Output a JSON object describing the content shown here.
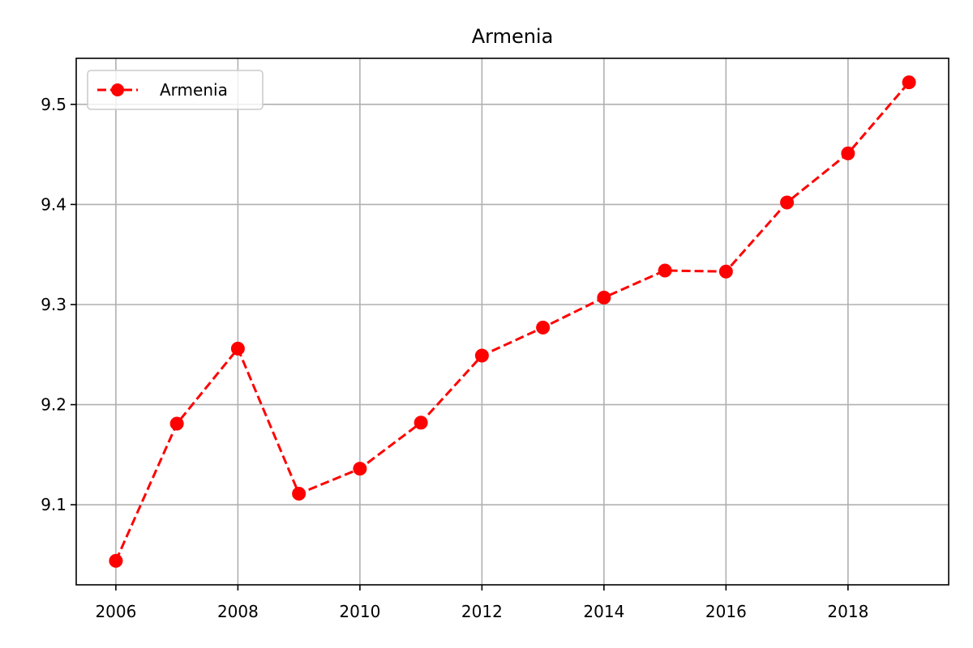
{
  "chart_data": {
    "type": "line",
    "title": "Armenia",
    "xlabel": "",
    "ylabel": "",
    "x": [
      2006,
      2007,
      2008,
      2009,
      2010,
      2011,
      2012,
      2013,
      2014,
      2015,
      2016,
      2017,
      2018,
      2019
    ],
    "series": [
      {
        "name": "Armenia",
        "color": "#ff0000",
        "line_style": "dashed",
        "marker": "circle",
        "values": [
          9.044,
          9.181,
          9.256,
          9.111,
          9.136,
          9.182,
          9.249,
          9.277,
          9.307,
          9.334,
          9.333,
          9.402,
          9.451,
          9.522
        ]
      }
    ],
    "xlim": [
      2005.35,
      2019.65
    ],
    "ylim": [
      9.02,
      9.546
    ],
    "x_ticks": [
      "2006",
      "2008",
      "2010",
      "2012",
      "2014",
      "2016",
      "2018"
    ],
    "y_ticks": [
      "9.1",
      "9.2",
      "9.3",
      "9.4",
      "9.5"
    ],
    "grid": true,
    "legend_position": "top-left"
  }
}
